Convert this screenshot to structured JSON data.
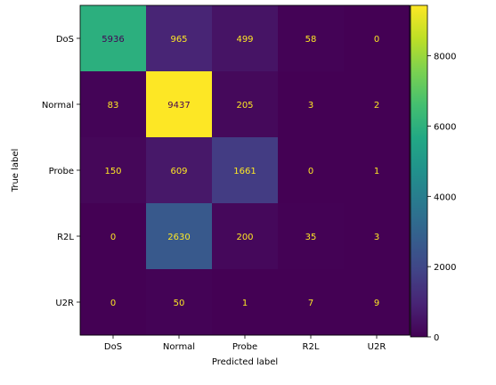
{
  "chart_data": {
    "type": "heatmap",
    "xlabel": "Predicted label",
    "ylabel": "True label",
    "categories_x": [
      "DoS",
      "Normal",
      "Probe",
      "R2L",
      "U2R"
    ],
    "categories_y": [
      "DoS",
      "Normal",
      "Probe",
      "R2L",
      "U2R"
    ],
    "values": [
      [
        5936,
        965,
        499,
        58,
        0
      ],
      [
        83,
        9437,
        205,
        3,
        2
      ],
      [
        150,
        609,
        1661,
        0,
        1
      ],
      [
        0,
        2630,
        200,
        35,
        3
      ],
      [
        0,
        50,
        1,
        7,
        9
      ]
    ],
    "colorbar": {
      "min": 0,
      "max": 9437,
      "ticks": [
        0,
        2000,
        4000,
        6000,
        8000
      ],
      "colormap": "viridis"
    },
    "text_colors": {
      "on_dark": "#fde725",
      "on_light": "#440154"
    },
    "grid": false,
    "legend": "colorbar-right"
  }
}
